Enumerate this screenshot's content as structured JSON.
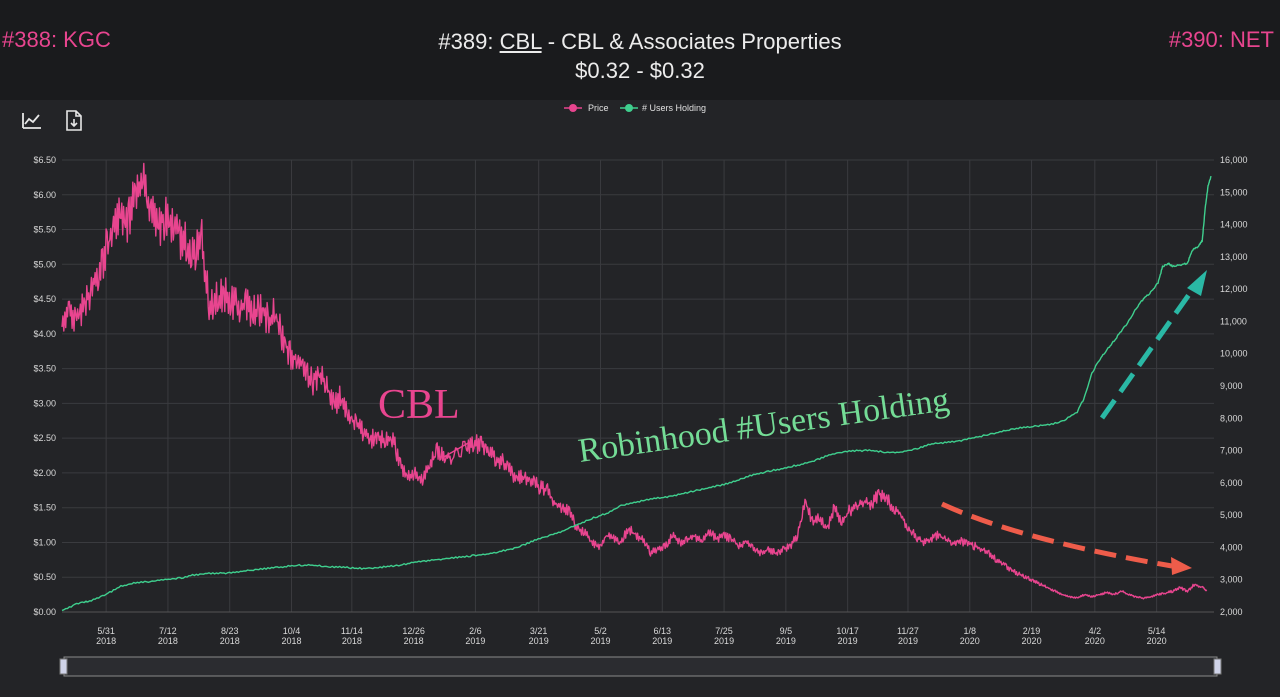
{
  "nav": {
    "prev_label": "#388: KGC",
    "next_label": "#390: NET"
  },
  "header": {
    "rank": "#389:",
    "ticker": "CBL",
    "company": "- CBL & Associates Properties",
    "price_range": "$0.32 - $0.32"
  },
  "toolbar": {
    "line_chart_icon": "line-chart-icon",
    "download_icon": "download-file-icon"
  },
  "colors": {
    "price": "#e8458f",
    "users": "#3fcf8e",
    "anno_users": "#74dc96",
    "arrow_up": "#2ab8a5",
    "arrow_down": "#ee5c4a"
  },
  "annotations": {
    "price_label": "CBL",
    "users_label": "Robinhood #Users Holding"
  },
  "chart_data": {
    "type": "line",
    "legend": [
      "Price",
      "# Users Holding"
    ],
    "legend_position": "top-center",
    "grid": true,
    "x_ticks": [
      {
        "label": "5/31",
        "year": "2018",
        "day": 30
      },
      {
        "label": "7/12",
        "year": "2018",
        "day": 72
      },
      {
        "label": "8/23",
        "year": "2018",
        "day": 114
      },
      {
        "label": "10/4",
        "year": "2018",
        "day": 156
      },
      {
        "label": "11/14",
        "year": "2018",
        "day": 197
      },
      {
        "label": "12/26",
        "year": "2018",
        "day": 239
      },
      {
        "label": "2/6",
        "year": "2019",
        "day": 281
      },
      {
        "label": "3/21",
        "year": "2019",
        "day": 324
      },
      {
        "label": "5/2",
        "year": "2019",
        "day": 366
      },
      {
        "label": "6/13",
        "year": "2019",
        "day": 408
      },
      {
        "label": "7/25",
        "year": "2019",
        "day": 450
      },
      {
        "label": "9/5",
        "year": "2019",
        "day": 492
      },
      {
        "label": "10/17",
        "year": "2019",
        "day": 534
      },
      {
        "label": "11/27",
        "year": "2019",
        "day": 575
      },
      {
        "label": "1/8",
        "year": "2020",
        "day": 617
      },
      {
        "label": "2/19",
        "year": "2020",
        "day": 659
      },
      {
        "label": "4/2",
        "year": "2020",
        "day": 702
      },
      {
        "label": "5/14",
        "year": "2020",
        "day": 744
      }
    ],
    "x_range": [
      0,
      783
    ],
    "y_left": {
      "ylim": [
        0,
        6.5
      ],
      "ticks": [
        "$0.00",
        "$0.50",
        "$1.00",
        "$1.50",
        "$2.00",
        "$2.50",
        "$3.00",
        "$3.50",
        "$4.00",
        "$4.50",
        "$5.00",
        "$5.50",
        "$6.00",
        "$6.50"
      ]
    },
    "y_right": {
      "ylim": [
        2000,
        16000
      ],
      "ticks": [
        "2,000",
        "3,000",
        "4,000",
        "5,000",
        "6,000",
        "7,000",
        "8,000",
        "9,000",
        "10,000",
        "11,000",
        "12,000",
        "13,000",
        "14,000",
        "15,000",
        "16,000"
      ]
    },
    "series": [
      {
        "name": "Price",
        "axis": "left",
        "points": [
          [
            0,
            4.1
          ],
          [
            5,
            4.35
          ],
          [
            10,
            4.2
          ],
          [
            15,
            4.4
          ],
          [
            20,
            4.6
          ],
          [
            25,
            4.9
          ],
          [
            30,
            5.2
          ],
          [
            35,
            5.5
          ],
          [
            40,
            5.8
          ],
          [
            45,
            5.6
          ],
          [
            50,
            6.0
          ],
          [
            55,
            6.2
          ],
          [
            60,
            5.8
          ],
          [
            65,
            5.5
          ],
          [
            70,
            5.7
          ],
          [
            75,
            5.6
          ],
          [
            80,
            5.4
          ],
          [
            85,
            5.3
          ],
          [
            90,
            5.1
          ],
          [
            95,
            5.4
          ],
          [
            100,
            4.4
          ],
          [
            105,
            4.5
          ],
          [
            110,
            4.6
          ],
          [
            115,
            4.5
          ],
          [
            120,
            4.4
          ],
          [
            125,
            4.45
          ],
          [
            130,
            4.3
          ],
          [
            135,
            4.35
          ],
          [
            140,
            4.2
          ],
          [
            145,
            4.3
          ],
          [
            150,
            3.9
          ],
          [
            155,
            3.7
          ],
          [
            160,
            3.6
          ],
          [
            165,
            3.5
          ],
          [
            170,
            3.3
          ],
          [
            175,
            3.45
          ],
          [
            180,
            3.2
          ],
          [
            185,
            3.0
          ],
          [
            190,
            3.1
          ],
          [
            195,
            2.8
          ],
          [
            200,
            2.7
          ],
          [
            205,
            2.6
          ],
          [
            210,
            2.5
          ],
          [
            215,
            2.55
          ],
          [
            220,
            2.45
          ],
          [
            225,
            2.5
          ],
          [
            230,
            2.1
          ],
          [
            235,
            1.95
          ],
          [
            240,
            2.0
          ],
          [
            245,
            1.9
          ],
          [
            250,
            2.1
          ],
          [
            255,
            2.3
          ],
          [
            260,
            2.2
          ],
          [
            265,
            2.25
          ],
          [
            275,
            2.4
          ],
          [
            280,
            2.45
          ],
          [
            285,
            2.4
          ],
          [
            290,
            2.3
          ],
          [
            295,
            2.2
          ],
          [
            300,
            2.15
          ],
          [
            305,
            2.0
          ],
          [
            310,
            1.95
          ],
          [
            315,
            1.9
          ],
          [
            320,
            1.85
          ],
          [
            325,
            1.8
          ],
          [
            330,
            1.75
          ],
          [
            335,
            1.55
          ],
          [
            340,
            1.5
          ],
          [
            345,
            1.45
          ],
          [
            350,
            1.2
          ],
          [
            355,
            1.15
          ],
          [
            360,
            1.0
          ],
          [
            365,
            0.95
          ],
          [
            370,
            1.1
          ],
          [
            375,
            1.05
          ],
          [
            380,
            1.0
          ],
          [
            385,
            1.2
          ],
          [
            390,
            1.1
          ],
          [
            395,
            1.05
          ],
          [
            400,
            0.85
          ],
          [
            405,
            0.9
          ],
          [
            410,
            0.95
          ],
          [
            415,
            1.1
          ],
          [
            420,
            1.0
          ],
          [
            425,
            1.05
          ],
          [
            430,
            1.1
          ],
          [
            435,
            1.0
          ],
          [
            440,
            1.15
          ],
          [
            445,
            1.05
          ],
          [
            450,
            1.1
          ],
          [
            455,
            1.05
          ],
          [
            460,
            0.95
          ],
          [
            465,
            1.0
          ],
          [
            470,
            0.9
          ],
          [
            475,
            0.85
          ],
          [
            480,
            0.9
          ],
          [
            485,
            0.85
          ],
          [
            490,
            0.9
          ],
          [
            495,
            0.95
          ],
          [
            500,
            1.1
          ],
          [
            505,
            1.6
          ],
          [
            510,
            1.3
          ],
          [
            515,
            1.35
          ],
          [
            520,
            1.2
          ],
          [
            525,
            1.5
          ],
          [
            530,
            1.3
          ],
          [
            535,
            1.45
          ],
          [
            540,
            1.5
          ],
          [
            545,
            1.6
          ],
          [
            550,
            1.55
          ],
          [
            555,
            1.7
          ],
          [
            560,
            1.65
          ],
          [
            565,
            1.5
          ],
          [
            570,
            1.4
          ],
          [
            575,
            1.2
          ],
          [
            580,
            1.1
          ],
          [
            585,
            1.0
          ],
          [
            590,
            1.05
          ],
          [
            595,
            1.1
          ],
          [
            600,
            1.05
          ],
          [
            605,
            1.0
          ],
          [
            610,
            1.02
          ],
          [
            615,
            1.0
          ],
          [
            620,
            0.95
          ],
          [
            625,
            0.9
          ],
          [
            630,
            0.85
          ],
          [
            635,
            0.75
          ],
          [
            640,
            0.7
          ],
          [
            645,
            0.6
          ],
          [
            650,
            0.55
          ],
          [
            655,
            0.5
          ],
          [
            660,
            0.45
          ],
          [
            665,
            0.4
          ],
          [
            670,
            0.35
          ],
          [
            675,
            0.3
          ],
          [
            680,
            0.25
          ],
          [
            685,
            0.22
          ],
          [
            690,
            0.2
          ],
          [
            695,
            0.25
          ],
          [
            700,
            0.22
          ],
          [
            705,
            0.25
          ],
          [
            710,
            0.28
          ],
          [
            715,
            0.25
          ],
          [
            720,
            0.3
          ],
          [
            725,
            0.25
          ],
          [
            730,
            0.22
          ],
          [
            735,
            0.2
          ],
          [
            740,
            0.22
          ],
          [
            745,
            0.25
          ],
          [
            750,
            0.27
          ],
          [
            755,
            0.3
          ],
          [
            760,
            0.35
          ],
          [
            765,
            0.3
          ],
          [
            770,
            0.4
          ],
          [
            775,
            0.35
          ],
          [
            778,
            0.32
          ]
        ]
      },
      {
        "name": "# Users Holding",
        "axis": "right",
        "points": [
          [
            0,
            2050
          ],
          [
            10,
            2250
          ],
          [
            20,
            2350
          ],
          [
            30,
            2550
          ],
          [
            40,
            2800
          ],
          [
            50,
            2900
          ],
          [
            60,
            2950
          ],
          [
            70,
            3000
          ],
          [
            80,
            3050
          ],
          [
            90,
            3150
          ],
          [
            100,
            3200
          ],
          [
            110,
            3200
          ],
          [
            120,
            3250
          ],
          [
            130,
            3300
          ],
          [
            140,
            3350
          ],
          [
            150,
            3400
          ],
          [
            160,
            3450
          ],
          [
            170,
            3450
          ],
          [
            180,
            3400
          ],
          [
            190,
            3400
          ],
          [
            200,
            3350
          ],
          [
            210,
            3350
          ],
          [
            220,
            3400
          ],
          [
            230,
            3450
          ],
          [
            240,
            3550
          ],
          [
            250,
            3600
          ],
          [
            260,
            3650
          ],
          [
            270,
            3700
          ],
          [
            280,
            3750
          ],
          [
            290,
            3800
          ],
          [
            300,
            3900
          ],
          [
            310,
            4000
          ],
          [
            320,
            4200
          ],
          [
            330,
            4350
          ],
          [
            340,
            4500
          ],
          [
            350,
            4700
          ],
          [
            360,
            4900
          ],
          [
            370,
            5050
          ],
          [
            380,
            5300
          ],
          [
            390,
            5400
          ],
          [
            400,
            5500
          ],
          [
            410,
            5550
          ],
          [
            420,
            5650
          ],
          [
            430,
            5750
          ],
          [
            440,
            5850
          ],
          [
            450,
            5950
          ],
          [
            460,
            6100
          ],
          [
            470,
            6250
          ],
          [
            480,
            6350
          ],
          [
            490,
            6450
          ],
          [
            500,
            6550
          ],
          [
            510,
            6650
          ],
          [
            520,
            6850
          ],
          [
            530,
            6950
          ],
          [
            540,
            7000
          ],
          [
            550,
            7000
          ],
          [
            560,
            6950
          ],
          [
            570,
            6950
          ],
          [
            580,
            7050
          ],
          [
            590,
            7200
          ],
          [
            600,
            7250
          ],
          [
            610,
            7300
          ],
          [
            620,
            7400
          ],
          [
            630,
            7500
          ],
          [
            640,
            7600
          ],
          [
            650,
            7700
          ],
          [
            660,
            7750
          ],
          [
            670,
            7800
          ],
          [
            680,
            7900
          ],
          [
            690,
            8200
          ],
          [
            695,
            8650
          ],
          [
            700,
            9400
          ],
          [
            705,
            9800
          ],
          [
            710,
            10100
          ],
          [
            715,
            10400
          ],
          [
            720,
            10700
          ],
          [
            725,
            11000
          ],
          [
            730,
            11400
          ],
          [
            735,
            11700
          ],
          [
            740,
            11900
          ],
          [
            745,
            12200
          ],
          [
            748,
            12700
          ],
          [
            752,
            12800
          ],
          [
            755,
            12700
          ],
          [
            760,
            12750
          ],
          [
            765,
            12800
          ],
          [
            768,
            13200
          ],
          [
            772,
            13300
          ],
          [
            775,
            13500
          ],
          [
            777,
            14500
          ],
          [
            779,
            15200
          ],
          [
            781,
            15500
          ]
        ]
      }
    ]
  }
}
